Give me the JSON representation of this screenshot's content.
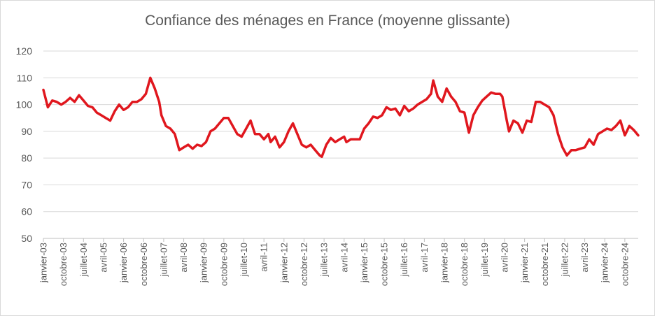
{
  "chart_data": {
    "type": "line",
    "title": "Confiance des ménages en France (moyenne glissante)",
    "xlabel": "",
    "ylabel": "",
    "ylim": [
      50,
      120
    ],
    "yticks": [
      50,
      60,
      70,
      80,
      90,
      100,
      110,
      120
    ],
    "grid": true,
    "line_color": "#e0171e",
    "x_tick_labels": [
      "janvier-03",
      "octobre-03",
      "juillet-04",
      "avril-05",
      "janvier-06",
      "octobre-06",
      "juillet-07",
      "avril-08",
      "janvier-09",
      "octobre-09",
      "juillet-10",
      "avril-11",
      "janvier-12",
      "octobre-12",
      "juillet-13",
      "avril-14",
      "janvier-15",
      "octobre-15",
      "juillet-16",
      "avril-17",
      "janvier-18",
      "octobre-18",
      "juillet-19",
      "avril-20",
      "janvier-21",
      "octobre-21",
      "juillet-22",
      "avril-23",
      "janvier-24",
      "octobre-24"
    ],
    "series": [
      {
        "points": [
          [
            "2003-01",
            105.5
          ],
          [
            "2003-03",
            99
          ],
          [
            "2003-05",
            101.5
          ],
          [
            "2003-07",
            101
          ],
          [
            "2003-09",
            100
          ],
          [
            "2003-11",
            101
          ],
          [
            "2004-01",
            102.5
          ],
          [
            "2004-03",
            101
          ],
          [
            "2004-05",
            103.5
          ],
          [
            "2004-07",
            101.5
          ],
          [
            "2004-09",
            99.5
          ],
          [
            "2004-11",
            99
          ],
          [
            "2005-01",
            97
          ],
          [
            "2005-03",
            96
          ],
          [
            "2005-05",
            95
          ],
          [
            "2005-07",
            94
          ],
          [
            "2005-09",
            97.5
          ],
          [
            "2005-11",
            100
          ],
          [
            "2006-01",
            98
          ],
          [
            "2006-03",
            99
          ],
          [
            "2006-05",
            101
          ],
          [
            "2006-07",
            101
          ],
          [
            "2006-09",
            102
          ],
          [
            "2006-11",
            104
          ],
          [
            "2007-01",
            110
          ],
          [
            "2007-03",
            106
          ],
          [
            "2007-05",
            101
          ],
          [
            "2007-06",
            96
          ],
          [
            "2007-08",
            92
          ],
          [
            "2007-10",
            91
          ],
          [
            "2007-12",
            89
          ],
          [
            "2008-02",
            83
          ],
          [
            "2008-04",
            84
          ],
          [
            "2008-06",
            85
          ],
          [
            "2008-08",
            83.5
          ],
          [
            "2008-10",
            85
          ],
          [
            "2008-12",
            84.5
          ],
          [
            "2009-02",
            86
          ],
          [
            "2009-04",
            90
          ],
          [
            "2009-06",
            91
          ],
          [
            "2009-08",
            93
          ],
          [
            "2009-10",
            95
          ],
          [
            "2009-12",
            95
          ],
          [
            "2010-02",
            92
          ],
          [
            "2010-04",
            89
          ],
          [
            "2010-06",
            88
          ],
          [
            "2010-08",
            91
          ],
          [
            "2010-10",
            94
          ],
          [
            "2010-12",
            89
          ],
          [
            "2011-02",
            89
          ],
          [
            "2011-04",
            87
          ],
          [
            "2011-06",
            89
          ],
          [
            "2011-07",
            86
          ],
          [
            "2011-09",
            88
          ],
          [
            "2011-11",
            84
          ],
          [
            "2012-01",
            86
          ],
          [
            "2012-03",
            90
          ],
          [
            "2012-05",
            93
          ],
          [
            "2012-07",
            89
          ],
          [
            "2012-09",
            85
          ],
          [
            "2012-11",
            84
          ],
          [
            "2013-01",
            85
          ],
          [
            "2013-03",
            83
          ],
          [
            "2013-05",
            81
          ],
          [
            "2013-06",
            80.5
          ],
          [
            "2013-08",
            85
          ],
          [
            "2013-10",
            87.5
          ],
          [
            "2013-12",
            86
          ],
          [
            "2014-02",
            87
          ],
          [
            "2014-04",
            88
          ],
          [
            "2014-05",
            86
          ],
          [
            "2014-07",
            87
          ],
          [
            "2014-09",
            87
          ],
          [
            "2014-11",
            87
          ],
          [
            "2015-01",
            91
          ],
          [
            "2015-03",
            93
          ],
          [
            "2015-05",
            95.5
          ],
          [
            "2015-07",
            95
          ],
          [
            "2015-09",
            96
          ],
          [
            "2015-11",
            99
          ],
          [
            "2016-01",
            98
          ],
          [
            "2016-03",
            98.5
          ],
          [
            "2016-05",
            96
          ],
          [
            "2016-07",
            99.5
          ],
          [
            "2016-09",
            97.5
          ],
          [
            "2016-11",
            98.5
          ],
          [
            "2017-01",
            100
          ],
          [
            "2017-03",
            101
          ],
          [
            "2017-05",
            102
          ],
          [
            "2017-07",
            104
          ],
          [
            "2017-08",
            109
          ],
          [
            "2017-10",
            103
          ],
          [
            "2017-12",
            101
          ],
          [
            "2018-02",
            106
          ],
          [
            "2018-04",
            103
          ],
          [
            "2018-06",
            101
          ],
          [
            "2018-08",
            97.5
          ],
          [
            "2018-10",
            97
          ],
          [
            "2018-12",
            89.5
          ],
          [
            "2019-02",
            96
          ],
          [
            "2019-04",
            99
          ],
          [
            "2019-06",
            101.5
          ],
          [
            "2019-08",
            103
          ],
          [
            "2019-10",
            104.5
          ],
          [
            "2019-12",
            104
          ],
          [
            "2020-02",
            104
          ],
          [
            "2020-03",
            103
          ],
          [
            "2020-05",
            94
          ],
          [
            "2020-06",
            90
          ],
          [
            "2020-08",
            94
          ],
          [
            "2020-10",
            93
          ],
          [
            "2020-12",
            89.5
          ],
          [
            "2021-02",
            94
          ],
          [
            "2021-04",
            93.5
          ],
          [
            "2021-06",
            101
          ],
          [
            "2021-08",
            101
          ],
          [
            "2021-10",
            100
          ],
          [
            "2021-12",
            99
          ],
          [
            "2022-02",
            96
          ],
          [
            "2022-04",
            89
          ],
          [
            "2022-06",
            84
          ],
          [
            "2022-08",
            81
          ],
          [
            "2022-10",
            83
          ],
          [
            "2022-12",
            83
          ],
          [
            "2023-02",
            83.5
          ],
          [
            "2023-04",
            84
          ],
          [
            "2023-06",
            87
          ],
          [
            "2023-08",
            85
          ],
          [
            "2023-10",
            89
          ],
          [
            "2023-12",
            90
          ],
          [
            "2024-02",
            91
          ],
          [
            "2024-04",
            90.5
          ],
          [
            "2024-06",
            92
          ],
          [
            "2024-08",
            94
          ],
          [
            "2024-10",
            88.5
          ],
          [
            "2024-12",
            92
          ],
          [
            "2025-02",
            90.5
          ],
          [
            "2025-04",
            88.5
          ]
        ]
      }
    ]
  }
}
